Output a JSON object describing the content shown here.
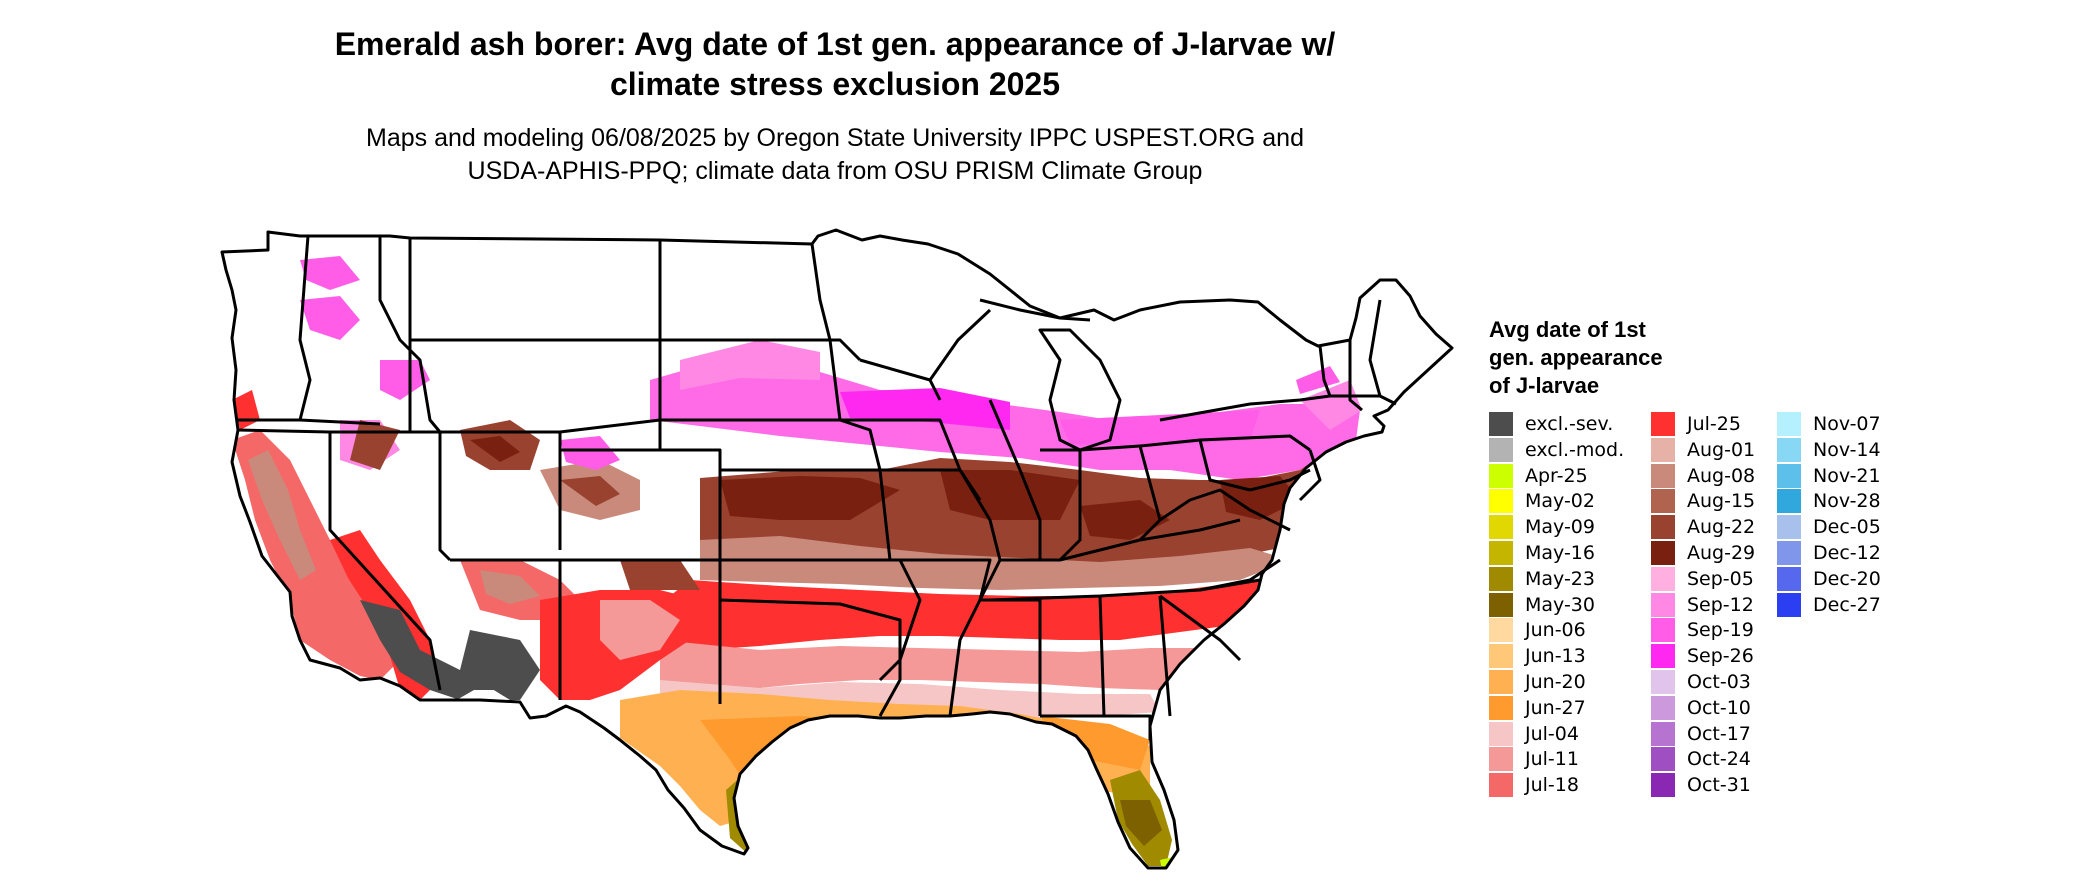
{
  "title": {
    "line1": "Emerald ash borer: Avg date of 1st gen. appearance of J-larvae w/",
    "line2": "climate stress exclusion 2025"
  },
  "subtitle": {
    "line1": "Maps and modeling 06/08/2025 by Oregon State University IPPC USPEST.ORG and",
    "line2": "USDA-APHIS-PPQ; climate data from OSU PRISM Climate Group"
  },
  "legend": {
    "title_lines": [
      "Avg date of 1st",
      "gen. appearance",
      "of J-larvae"
    ],
    "columns": [
      [
        {
          "label": "excl.-sev.",
          "color": "#4d4d4d"
        },
        {
          "label": "excl.-mod.",
          "color": "#b3b3b3"
        },
        {
          "label": "Apr-25",
          "color": "#ccff00"
        },
        {
          "label": "May-02",
          "color": "#ffff00"
        },
        {
          "label": "May-09",
          "color": "#e0d800"
        },
        {
          "label": "May-16",
          "color": "#c4b600"
        },
        {
          "label": "May-23",
          "color": "#a08a00"
        },
        {
          "label": "May-30",
          "color": "#7d6000"
        },
        {
          "label": "Jun-06",
          "color": "#ffd9a0"
        },
        {
          "label": "Jun-13",
          "color": "#ffc878"
        },
        {
          "label": "Jun-20",
          "color": "#ffb152"
        },
        {
          "label": "Jun-27",
          "color": "#ff9a2e"
        },
        {
          "label": "Jul-04",
          "color": "#f6c6c6"
        },
        {
          "label": "Jul-11",
          "color": "#f49898"
        },
        {
          "label": "Jul-18",
          "color": "#f46868"
        }
      ],
      [
        {
          "label": "Jul-25",
          "color": "#ff3030"
        },
        {
          "label": "Aug-01",
          "color": "#e6b2a8"
        },
        {
          "label": "Aug-08",
          "color": "#c98a7c"
        },
        {
          "label": "Aug-15",
          "color": "#b06450"
        },
        {
          "label": "Aug-22",
          "color": "#9a4230"
        },
        {
          "label": "Aug-29",
          "color": "#7a2010"
        },
        {
          "label": "Sep-05",
          "color": "#ffb0e0"
        },
        {
          "label": "Sep-12",
          "color": "#ff88e4"
        },
        {
          "label": "Sep-19",
          "color": "#ff5ce8"
        },
        {
          "label": "Sep-26",
          "color": "#ff28f0"
        },
        {
          "label": "Oct-03",
          "color": "#e0c4ec"
        },
        {
          "label": "Oct-10",
          "color": "#cc99dd"
        },
        {
          "label": "Oct-17",
          "color": "#b673d0"
        },
        {
          "label": "Oct-24",
          "color": "#a04fc2"
        },
        {
          "label": "Oct-31",
          "color": "#8a28b4"
        }
      ],
      [
        {
          "label": "Nov-07",
          "color": "#b5f0ff"
        },
        {
          "label": "Nov-14",
          "color": "#87d7f5"
        },
        {
          "label": "Nov-21",
          "color": "#5cc0ea"
        },
        {
          "label": "Nov-28",
          "color": "#30a8de"
        },
        {
          "label": "Dec-05",
          "color": "#a8c0ec"
        },
        {
          "label": "Dec-12",
          "color": "#7f96ea"
        },
        {
          "label": "Dec-20",
          "color": "#5668ee"
        },
        {
          "label": "Dec-27",
          "color": "#2b3ef2"
        }
      ]
    ]
  }
}
